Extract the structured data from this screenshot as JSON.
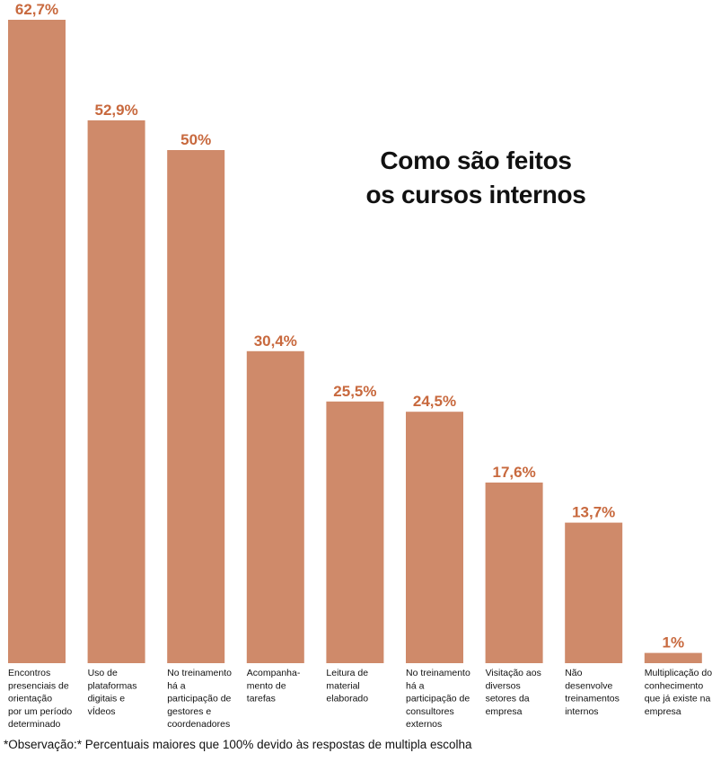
{
  "chart_data": {
    "type": "bar",
    "title_lines": [
      "Como são feitos",
      "os cursos internos"
    ],
    "categories": [
      [
        "Encontros",
        "presenciais de",
        "orientação",
        "por um período",
        "determinado"
      ],
      [
        "Uso de",
        "plataformas",
        "digitais e",
        "vÍdeos"
      ],
      [
        "No treinamento",
        "há a",
        "participação de",
        "gestores e",
        "coordenadores"
      ],
      [
        "Acompanha-",
        "mento de",
        "tarefas"
      ],
      [
        "Leitura de",
        "material",
        "elaborado"
      ],
      [
        "No treinamento",
        "há a",
        "participação de",
        "consultores",
        "externos"
      ],
      [
        "Visitação aos",
        "diversos",
        "setores da",
        "empresa"
      ],
      [
        "Não",
        "desenvolve",
        "treinamentos",
        "internos"
      ],
      [
        "Multiplicação do",
        "conhecimento",
        "que já existe na",
        "empresa"
      ]
    ],
    "values": [
      62.7,
      52.9,
      50,
      30.4,
      25.5,
      24.5,
      17.6,
      13.7,
      1
    ],
    "value_labels": [
      "62,7%",
      "52,9%",
      "50%",
      "30,4%",
      "25,5%",
      "24,5%",
      "17,6%",
      "13,7%",
      "1%"
    ],
    "ylim": [
      0,
      62.7
    ],
    "bar_color": "#cf8a6a",
    "label_color": "#c8693e",
    "xlabel": "",
    "ylabel": "",
    "grid": false
  },
  "footnote": "*Observação:* Percentuais maiores que 100% devido às respostas de multipla escolha"
}
